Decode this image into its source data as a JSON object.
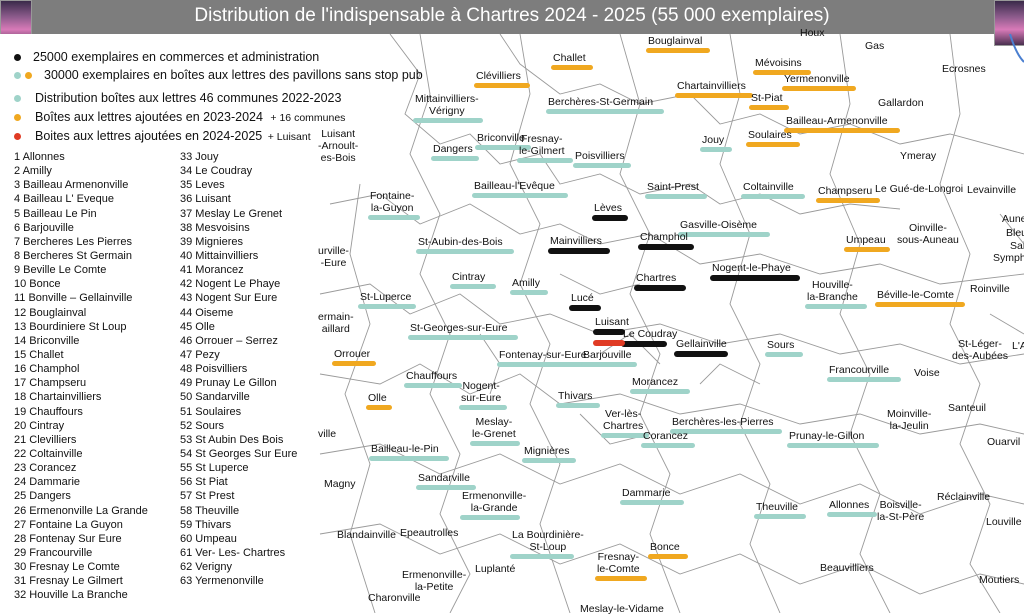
{
  "header": {
    "title": "Distribution de l'indispensable à Chartres 2024 - 2025  (55 000 exemplaires)"
  },
  "colors": {
    "header_bg": "#7d7d7d",
    "teal": "#9fd3c9",
    "orange": "#f0a820",
    "red": "#e03b24",
    "black": "#111111",
    "border": "#9a9a9a"
  },
  "legend": [
    {
      "text": "25000 exemplaires en commerces et administration",
      "extra": "",
      "marker": "black"
    },
    {
      "text": "30000  exemplaires en boîtes aux lettres des pavillons sans stop pub",
      "extra": "",
      "marker": "teal-orange"
    },
    {
      "text": "Distribution boîtes aux lettres 46 communes 2022-2023",
      "extra": "",
      "marker": "teal"
    },
    {
      "text": "Boîtes aux lettres ajoutées en 2023-2024",
      "extra": "+ 16 communes",
      "marker": "orange"
    },
    {
      "text": "Boites aux lettres ajoutées en 2024-2025",
      "extra": "+ Luisant",
      "marker": "red"
    }
  ],
  "communes_col1": [
    "1 Allonnes",
    "2 Amilly",
    "3 Bailleau Armenonville",
    "4 Bailleau L' Eveque",
    "5 Bailleau Le Pin",
    "6 Barjouville",
    "7 Bercheres Les Pierres",
    "8 Bercheres St Germain",
    "9 Beville Le Comte",
    "10 Bonce",
    "11 Bonville – Gellainville",
    "12 Bouglainval",
    "13 Bourdiniere St Loup",
    "14 Briconville",
    "15 Challet",
    "16 Champhol",
    "17 Champseru",
    "18 Chartainvilliers",
    "19 Chauffours",
    "20 Cintray",
    "21 Clevilliers",
    "22 Coltainville",
    "23 Corancez",
    "24 Dammarie",
    "25 Dangers",
    "26 Ermenonville La Grande",
    "27 Fontaine La Guyon",
    "28 Fontenay Sur Eure",
    "29 Francourville",
    "30 Fresnay Le Comte",
    "31 Fresnay Le Gilmert",
    "32 Houville La Branche"
  ],
  "communes_col2": [
    "33 Jouy",
    "34 Le Coudray",
    "35 Leves",
    "36 Luisant",
    "37 Meslay Le Grenet",
    "38 Mesvoisins",
    "39 Mignieres",
    "40 Mittainvilliers",
    "41 Morancez",
    "42 Nogent Le Phaye",
    "43 Nogent Sur Eure",
    "44 Oiseme",
    "45 Olle",
    "46 Orrouer – Serrez",
    "47 Pezy",
    "48 Poisvilliers",
    "49 Prunay Le Gillon",
    "50 Sandarville",
    "51 Soulaires",
    "52 Sours",
    "53 St Aubin Des Bois",
    "54 St Georges Sur Eure",
    "55 St Luperce",
    "56 St Piat",
    "57 St Prest",
    "58 Theuville",
    "59 Thivars",
    "60 Umpeau",
    "61 Ver- Les- Chartres",
    "62 Verigny",
    "63 Yermenonville"
  ],
  "towns": [
    {
      "text": "Houx"
    },
    {
      "text": "Gas"
    },
    {
      "text": "Ecrosnes"
    },
    {
      "text": "Challet"
    },
    {
      "text": "Bouglainval"
    },
    {
      "text": "Mévoisins"
    },
    {
      "text": "Clévilliers"
    },
    {
      "text": "Yermenonville"
    },
    {
      "text": "Chartainvilliers"
    },
    {
      "text": "St-Piat"
    },
    {
      "text": "Gallardon"
    },
    {
      "text": "Mittainvilliers-\nVérigny"
    },
    {
      "text": "Berchères-St-Germain"
    },
    {
      "text": "Bailleau-Armenonville"
    },
    {
      "text": "Soulaires"
    },
    {
      "text": "Luisant\n-Arnoult-\nes-Bois"
    },
    {
      "text": "Briconville"
    },
    {
      "text": "Dangers"
    },
    {
      "text": "Fresnay-\nle-Gilmert"
    },
    {
      "text": "Poisvilliers"
    },
    {
      "text": "Jouy"
    },
    {
      "text": "Ymeray"
    },
    {
      "text": "Fontaine-\nla-Guyon"
    },
    {
      "text": "Bailleau-l'Evêque"
    },
    {
      "text": "Saint-Prest"
    },
    {
      "text": "Coltainville"
    },
    {
      "text": "Champseru"
    },
    {
      "text": "Le Gué-de-Longroi"
    },
    {
      "text": "Levainville"
    },
    {
      "text": "Lèves"
    },
    {
      "text": "Gasville-Oisème"
    },
    {
      "text": "Aune"
    },
    {
      "text": "St-Aubin-des-Bois"
    },
    {
      "text": "Mainvilliers"
    },
    {
      "text": "Champhol"
    },
    {
      "text": "Umpeau"
    },
    {
      "text": "Oinville-\nsous-Auneau"
    },
    {
      "text": "Bleu"
    },
    {
      "text": "Sai"
    },
    {
      "text": "Symph"
    },
    {
      "text": "urville-\n-Eure"
    },
    {
      "text": "Cintray"
    },
    {
      "text": "Amilly"
    },
    {
      "text": "Chartres"
    },
    {
      "text": "Nogent-le-Phaye"
    },
    {
      "text": "Houville-\nla-Branche"
    },
    {
      "text": "Béville-le-Comte"
    },
    {
      "text": "Roinville"
    },
    {
      "text": "St-Luperce"
    },
    {
      "text": "Lucé"
    },
    {
      "text": "ermain-\naillard"
    },
    {
      "text": "St-Georges-sur-Eure"
    },
    {
      "text": "Luisant"
    },
    {
      "text": "Le Coudray"
    },
    {
      "text": "Gellainville"
    },
    {
      "text": "Sours"
    },
    {
      "text": "St-Léger-\ndes-Aubées"
    },
    {
      "text": "L'A"
    },
    {
      "text": "Orrouer"
    },
    {
      "text": "Fontenay-sur-Eure"
    },
    {
      "text": "Barjouville"
    },
    {
      "text": "Francourville"
    },
    {
      "text": "Voise"
    },
    {
      "text": "Chauffours"
    },
    {
      "text": "Olle"
    },
    {
      "text": "Nogent-\nsur-Eure"
    },
    {
      "text": "Morancez"
    },
    {
      "text": "Thivars"
    },
    {
      "text": "Ver-lès-\nChartres"
    },
    {
      "text": "Santeuil"
    },
    {
      "text": "Moinville-\nla-Jeulin"
    },
    {
      "text": "ville"
    },
    {
      "text": "Meslay-\nle-Grenet"
    },
    {
      "text": "Berchères-les-Pierres"
    },
    {
      "text": "Corancez"
    },
    {
      "text": "Prunay-le-Gillon"
    },
    {
      "text": "Ouarvil"
    },
    {
      "text": "Bailleau-le-Pin"
    },
    {
      "text": "Mignières"
    },
    {
      "text": "Magny"
    },
    {
      "text": "Sandarville"
    },
    {
      "text": "Dammarie"
    },
    {
      "text": "Réclainville"
    },
    {
      "text": "Ermenonville-\nla-Grande"
    },
    {
      "text": "Theuville"
    },
    {
      "text": "Allonnes"
    },
    {
      "text": "Boisville-\nla-St-Père"
    },
    {
      "text": "Louville"
    },
    {
      "text": "Blandainville"
    },
    {
      "text": "Epeautrolles"
    },
    {
      "text": "La Bourdinière-\nSt-Loup"
    },
    {
      "text": "Bonce"
    },
    {
      "text": "Fresnay-\nle-Comte"
    },
    {
      "text": "Luplanté"
    },
    {
      "text": "Beauvilliers"
    },
    {
      "text": "Ermenonville-\nla-Petite"
    },
    {
      "text": "Moutiers"
    },
    {
      "text": "Charonville"
    },
    {
      "text": "Meslay-le-Vidame"
    }
  ]
}
